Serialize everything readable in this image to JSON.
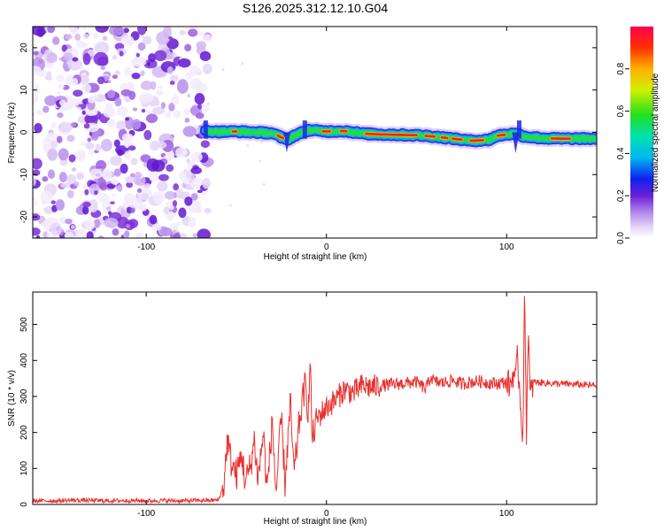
{
  "title": "S126.2025.312.12.10.G04",
  "chart_data": [
    {
      "type": "heatmap",
      "xlabel": "Height of straight line (km)",
      "ylabel": "Frequency (Hz)",
      "xlim": [
        -163,
        150
      ],
      "ylim": [
        -25,
        25
      ],
      "xticks": [
        -100,
        0,
        100
      ],
      "xtick_labels": [
        "-100",
        "0",
        "100"
      ],
      "yticks": [
        -20,
        -10,
        0,
        10,
        20
      ],
      "ytick_labels": [
        "-20",
        "-10",
        "0",
        "10",
        "20"
      ],
      "noise_region_x": [
        -163,
        -67
      ],
      "signal_start_x": -67,
      "ridge": {
        "x": [
          -67,
          -60,
          -50,
          -40,
          -30,
          -22,
          -18,
          -10,
          0,
          10,
          20,
          30,
          40,
          50,
          60,
          70,
          80,
          90,
          95,
          100,
          105,
          110,
          120,
          130,
          140,
          150
        ],
        "y": [
          0.3,
          0.1,
          0.2,
          0.0,
          -0.2,
          -1.8,
          -0.8,
          0.5,
          0.2,
          0.3,
          -0.3,
          -0.5,
          -0.6,
          -0.7,
          -1.0,
          -1.5,
          -2.0,
          -1.8,
          -0.8,
          -0.5,
          -0.3,
          -1.0,
          -1.4,
          -1.5,
          -1.5,
          -1.5
        ]
      },
      "colorbar": {
        "label": "Normalized spectral amplitude",
        "range": [
          0,
          1
        ],
        "ticks": [
          0.0,
          0.2,
          0.4,
          0.6,
          0.8
        ],
        "tick_labels": [
          "0.0",
          "0.2",
          "0.4",
          "0.6",
          "0.8"
        ]
      }
    },
    {
      "type": "line",
      "xlabel": "Height of straight line (km)",
      "ylabel": "SNR (10 * v/v)",
      "xlim": [
        -163,
        150
      ],
      "ylim": [
        0,
        590
      ],
      "xticks": [
        -100,
        0,
        100
      ],
      "xtick_labels": [
        "-100",
        "0",
        "100"
      ],
      "yticks": [
        0,
        100,
        200,
        300,
        400,
        500
      ],
      "ytick_labels": [
        "0",
        "100",
        "200",
        "300",
        "400",
        "500"
      ],
      "color": "#e8312f",
      "series": [
        {
          "name": "SNR",
          "x": [
            -163,
            -150,
            -140,
            -130,
            -120,
            -110,
            -100,
            -90,
            -80,
            -70,
            -60,
            -57,
            -55,
            -53,
            -50,
            -47,
            -45,
            -42,
            -40,
            -38,
            -35,
            -33,
            -30,
            -28,
            -25,
            -23,
            -20,
            -18,
            -15,
            -12,
            -10,
            -9,
            -8,
            -5,
            0,
            5,
            10,
            15,
            20,
            25,
            30,
            40,
            50,
            55,
            58,
            60,
            65,
            70,
            75,
            80,
            85,
            90,
            95,
            100,
            102,
            104,
            105,
            106,
            108,
            109,
            110,
            111,
            112,
            113,
            115,
            120,
            130,
            140,
            150
          ],
          "y": [
            10,
            10,
            12,
            11,
            10,
            11,
            10,
            11,
            10,
            11,
            12,
            50,
            180,
            120,
            80,
            140,
            60,
            110,
            180,
            70,
            200,
            40,
            230,
            30,
            240,
            60,
            280,
            80,
            230,
            330,
            260,
            405,
            180,
            240,
            270,
            290,
            320,
            310,
            330,
            325,
            330,
            335,
            340,
            320,
            355,
            340,
            338,
            345,
            335,
            340,
            342,
            338,
            336,
            340,
            330,
            370,
            340,
            410,
            260,
            185,
            590,
            200,
            500,
            300,
            340,
            338,
            335,
            333,
            330
          ]
        }
      ]
    }
  ]
}
